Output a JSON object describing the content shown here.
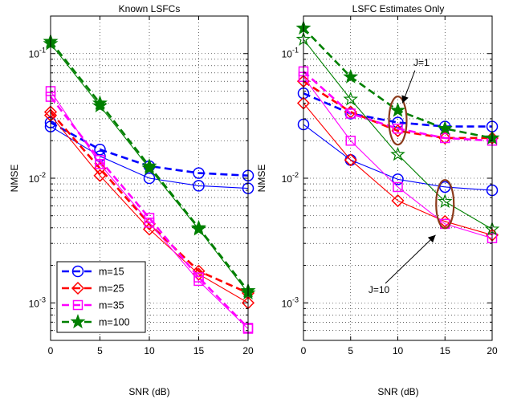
{
  "chart_data": [
    {
      "type": "line",
      "title": "Known LSFCs",
      "xlabel": "SNR (dB)",
      "ylabel": "NMSE",
      "yscale": "log",
      "xlim": [
        0,
        20
      ],
      "ylim": [
        0.0005,
        0.2
      ],
      "grid": true,
      "legend_position": "bottom-left",
      "x_ticks": [
        "0",
        "5",
        "10",
        "15",
        "20"
      ],
      "y_ticks": [
        {
          "value": 0.001,
          "base": "10",
          "exp": "-3"
        },
        {
          "value": 0.01,
          "base": "10",
          "exp": "-2"
        },
        {
          "value": 0.1,
          "base": "10",
          "exp": "-1"
        }
      ],
      "x": [
        0,
        5,
        10,
        15,
        20
      ],
      "series": [
        {
          "name": "m=15",
          "color": "#0000ff",
          "marker": "circle",
          "style": "dashed",
          "values": [
            0.028,
            0.017,
            0.0125,
            0.011,
            0.0105
          ]
        },
        {
          "name": "m=15",
          "color": "#0000ff",
          "marker": "circle",
          "style": "solid",
          "values": [
            0.026,
            0.015,
            0.01,
            0.0087,
            0.0083
          ]
        },
        {
          "name": "m=25",
          "color": "#ff0000",
          "marker": "diamond",
          "style": "dashed",
          "values": [
            0.034,
            0.012,
            0.0043,
            0.0018,
            0.0012
          ]
        },
        {
          "name": "m=25",
          "color": "#ff0000",
          "marker": "diamond",
          "style": "solid",
          "values": [
            0.032,
            0.0105,
            0.0039,
            0.0017,
            0.001
          ]
        },
        {
          "name": "m=35",
          "color": "#ff00ff",
          "marker": "square",
          "style": "dashed",
          "values": [
            0.045,
            0.014,
            0.0048,
            0.0016,
            0.00063
          ]
        },
        {
          "name": "m=35",
          "color": "#ff00ff",
          "marker": "square",
          "style": "solid",
          "values": [
            0.05,
            0.013,
            0.0044,
            0.0015,
            0.00062
          ]
        },
        {
          "name": "m=100",
          "color": "#008000",
          "marker": "star-filled",
          "style": "dashed",
          "values": [
            0.125,
            0.04,
            0.0125,
            0.004,
            0.00125
          ]
        },
        {
          "name": "m=100",
          "color": "#008000",
          "marker": "star-filled",
          "style": "solid",
          "values": [
            0.12,
            0.038,
            0.012,
            0.0039,
            0.0012
          ]
        }
      ],
      "legend": [
        {
          "label": "m=15",
          "color": "#0000ff",
          "marker": "circle"
        },
        {
          "label": "m=25",
          "color": "#ff0000",
          "marker": "diamond"
        },
        {
          "label": "m=35",
          "color": "#ff00ff",
          "marker": "square"
        },
        {
          "label": "m=100",
          "color": "#008000",
          "marker": "star-filled"
        }
      ]
    },
    {
      "type": "line",
      "title": "LSFC Estimates Only",
      "xlabel": "SNR (dB)",
      "ylabel": "NMSE",
      "yscale": "log",
      "xlim": [
        0,
        20
      ],
      "ylim": [
        0.0005,
        0.2
      ],
      "grid": true,
      "x_ticks": [
        "0",
        "5",
        "10",
        "15",
        "20"
      ],
      "y_ticks": [
        {
          "value": 0.001,
          "base": "10",
          "exp": "-3"
        },
        {
          "value": 0.01,
          "base": "10",
          "exp": "-2"
        },
        {
          "value": 0.1,
          "base": "10",
          "exp": "-1"
        }
      ],
      "x": [
        0,
        5,
        10,
        15,
        20
      ],
      "series": [
        {
          "name": "m=15",
          "color": "#0000ff",
          "marker": "circle",
          "style": "dashed",
          "values": [
            0.048,
            0.033,
            0.028,
            0.026,
            0.026
          ]
        },
        {
          "name": "m=15",
          "color": "#0000ff",
          "marker": "circle",
          "style": "solid",
          "values": [
            0.027,
            0.014,
            0.0098,
            0.0085,
            0.008
          ]
        },
        {
          "name": "m=25",
          "color": "#ff0000",
          "marker": "diamond",
          "style": "dashed",
          "values": [
            0.06,
            0.034,
            0.024,
            0.021,
            0.021
          ]
        },
        {
          "name": "m=25",
          "color": "#ff0000",
          "marker": "diamond",
          "style": "solid",
          "values": [
            0.04,
            0.014,
            0.0066,
            0.0045,
            0.0035
          ]
        },
        {
          "name": "m=35",
          "color": "#ff00ff",
          "marker": "square",
          "style": "dashed",
          "values": [
            0.072,
            0.033,
            0.025,
            0.021,
            0.02
          ]
        },
        {
          "name": "m=35",
          "color": "#ff00ff",
          "marker": "square",
          "style": "solid",
          "values": [
            0.065,
            0.02,
            0.0085,
            0.0043,
            0.0033
          ]
        },
        {
          "name": "m=100",
          "color": "#008000",
          "marker": "star-filled",
          "style": "dashed",
          "values": [
            0.16,
            0.065,
            0.035,
            0.025,
            0.021
          ]
        },
        {
          "name": "m=100",
          "color": "#008000",
          "marker": "star-open",
          "style": "solid",
          "values": [
            0.13,
            0.043,
            0.0155,
            0.0065,
            0.0039
          ]
        }
      ],
      "ellipses": [
        {
          "x": 10,
          "y": 0.029
        },
        {
          "x": 15,
          "y": 0.0062
        }
      ],
      "annotations": [
        {
          "text": "J=1",
          "x": 12.5,
          "y": 0.08,
          "arrow_to": [
            10.5,
            0.04
          ]
        },
        {
          "text": "J=10",
          "x": 8,
          "y": 0.0012,
          "arrow_to": [
            14,
            0.0035
          ]
        }
      ]
    }
  ]
}
